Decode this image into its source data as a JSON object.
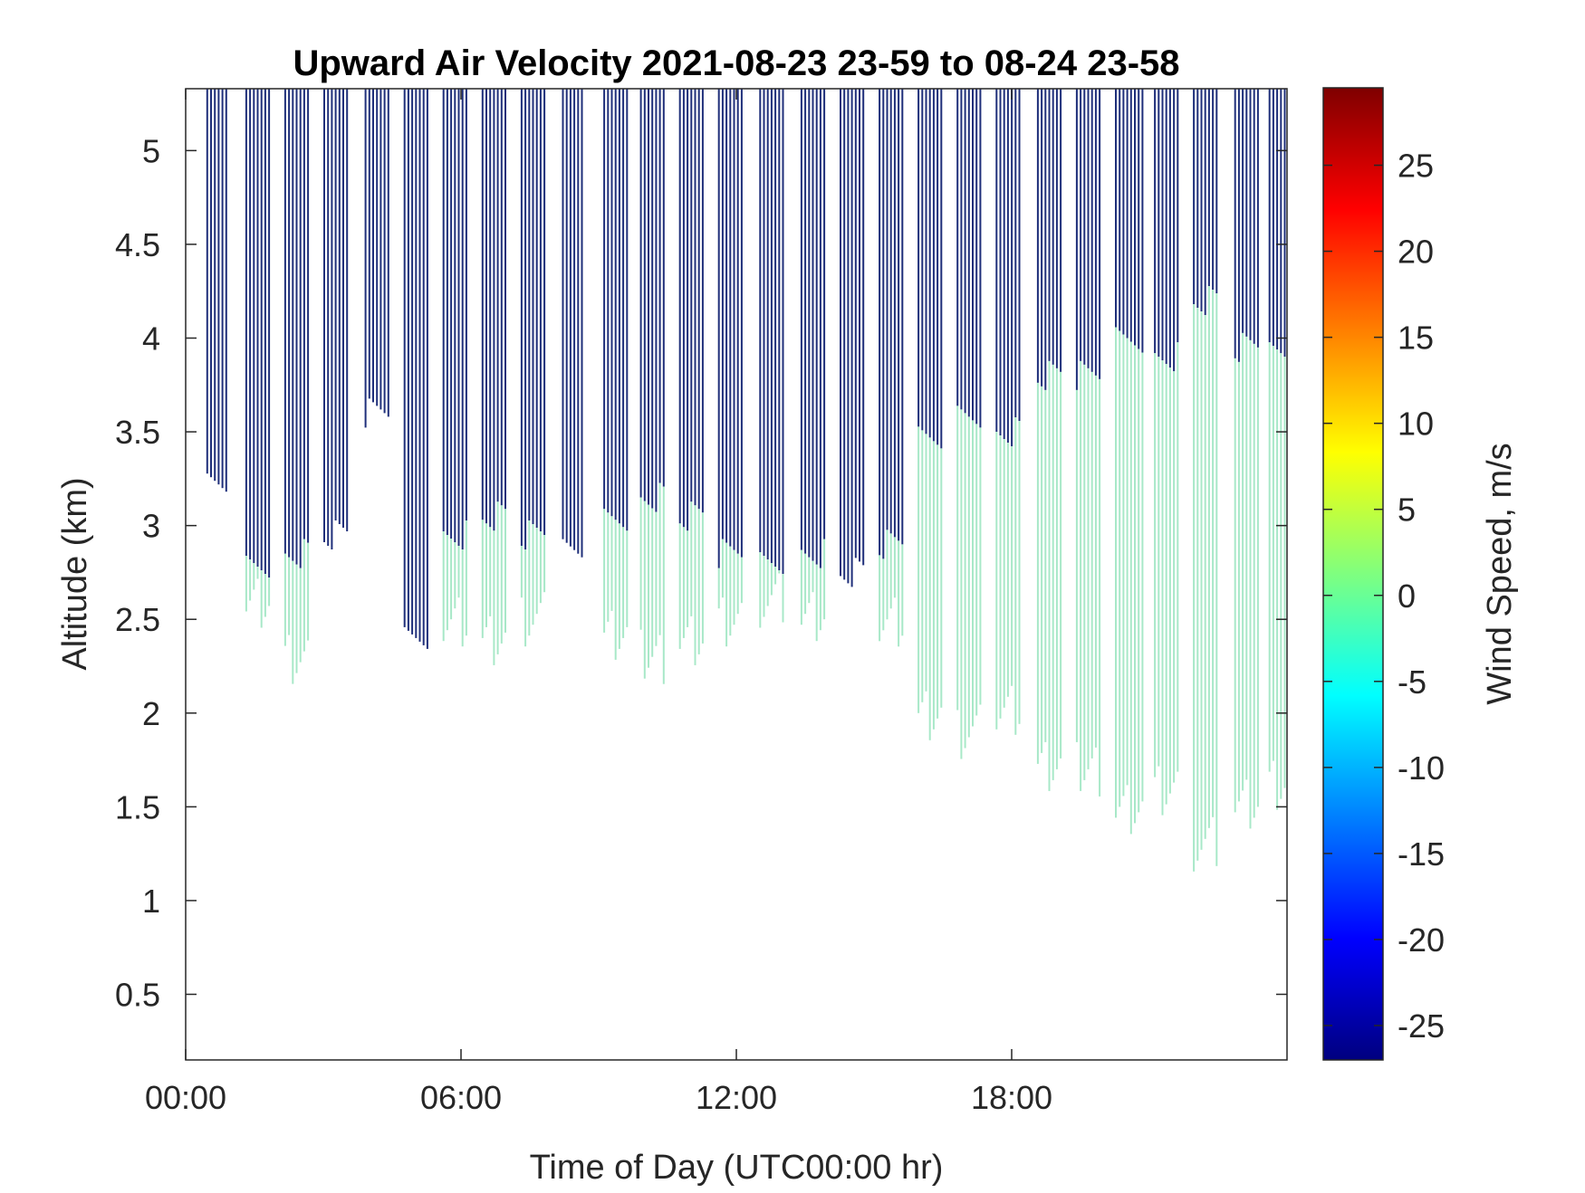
{
  "chart_data": {
    "type": "heatmap",
    "title": "Upward Air Velocity 2021-08-23 23-59 to 08-24 23-58",
    "xlabel": "Time of Day (UTC00:00 hr)",
    "ylabel": "Altitude (km)",
    "x_ticks": [
      {
        "value": 0,
        "label": "00:00"
      },
      {
        "value": 6,
        "label": "06:00"
      },
      {
        "value": 12,
        "label": "12:00"
      },
      {
        "value": 18,
        "label": "18:00"
      }
    ],
    "y_ticks": [
      {
        "value": 0.5,
        "label": "0.5"
      },
      {
        "value": 1,
        "label": "1"
      },
      {
        "value": 1.5,
        "label": "1.5"
      },
      {
        "value": 2,
        "label": "2"
      },
      {
        "value": 2.5,
        "label": "2.5"
      },
      {
        "value": 3,
        "label": "3"
      },
      {
        "value": 3.5,
        "label": "3.5"
      },
      {
        "value": 4,
        "label": "4"
      },
      {
        "value": 4.5,
        "label": "4.5"
      },
      {
        "value": 5,
        "label": "5"
      }
    ],
    "xlim": [
      0,
      24
    ],
    "ylim": [
      0.15,
      5.33
    ],
    "colorbar": {
      "label": "Wind Speed, m/s",
      "range": [
        -27,
        29.5
      ],
      "colormap": "jet",
      "ticks": [
        {
          "value": -25,
          "label": "-25"
        },
        {
          "value": -20,
          "label": "-20"
        },
        {
          "value": -15,
          "label": "-15"
        },
        {
          "value": -10,
          "label": "-10"
        },
        {
          "value": -5,
          "label": "-5"
        },
        {
          "value": 0,
          "label": "0"
        },
        {
          "value": 5,
          "label": "5"
        },
        {
          "value": 10,
          "label": "10"
        },
        {
          "value": 15,
          "label": "15"
        },
        {
          "value": 20,
          "label": "20"
        },
        {
          "value": 25,
          "label": "25"
        }
      ]
    },
    "colors": {
      "high_altitude_band": "#1f2f7a",
      "low_altitude_band": "#a8e8c8"
    },
    "series": [
      {
        "start": 0.45,
        "end": 0.9,
        "top": 5.33,
        "dark_bottom": 3.2,
        "green_bottom": null
      },
      {
        "start": 1.3,
        "end": 1.85,
        "top": 5.33,
        "dark_bottom": 2.8,
        "green_bottom": 2.6
      },
      {
        "start": 2.15,
        "end": 2.65,
        "top": 5.33,
        "dark_bottom": 2.85,
        "green_bottom": 2.3
      },
      {
        "start": 3.0,
        "end": 3.55,
        "top": 5.33,
        "dark_bottom": 2.95,
        "green_bottom": null
      },
      {
        "start": 3.9,
        "end": 4.4,
        "top": 5.33,
        "dark_bottom": 3.6,
        "green_bottom": null
      },
      {
        "start": 4.75,
        "end": 5.3,
        "top": 5.33,
        "dark_bottom": 2.4,
        "green_bottom": 2.85
      },
      {
        "start": 5.6,
        "end": 6.15,
        "top": 5.33,
        "dark_bottom": 2.95,
        "green_bottom": 2.5
      },
      {
        "start": 6.45,
        "end": 7.0,
        "top": 5.33,
        "dark_bottom": 3.05,
        "green_bottom": 2.4
      },
      {
        "start": 7.3,
        "end": 7.85,
        "top": 5.33,
        "dark_bottom": 2.95,
        "green_bottom": 2.5
      },
      {
        "start": 8.2,
        "end": 8.65,
        "top": 5.33,
        "dark_bottom": 2.85,
        "green_bottom": null
      },
      {
        "start": 9.1,
        "end": 9.6,
        "top": 5.33,
        "dark_bottom": 3.05,
        "green_bottom": 2.4
      },
      {
        "start": 9.9,
        "end": 10.45,
        "top": 5.33,
        "dark_bottom": 3.15,
        "green_bottom": 2.3
      },
      {
        "start": 10.75,
        "end": 11.3,
        "top": 5.33,
        "dark_bottom": 3.05,
        "green_bottom": 2.4
      },
      {
        "start": 11.6,
        "end": 12.1,
        "top": 5.33,
        "dark_bottom": 2.85,
        "green_bottom": 2.5
      },
      {
        "start": 12.5,
        "end": 13.0,
        "top": 5.33,
        "dark_bottom": 2.8,
        "green_bottom": 2.6
      },
      {
        "start": 13.4,
        "end": 13.95,
        "top": 5.33,
        "dark_bottom": 2.85,
        "green_bottom": 2.5
      },
      {
        "start": 14.25,
        "end": 14.8,
        "top": 5.33,
        "dark_bottom": 2.75,
        "green_bottom": null
      },
      {
        "start": 15.1,
        "end": 15.6,
        "top": 5.33,
        "dark_bottom": 2.9,
        "green_bottom": 2.5
      },
      {
        "start": 15.95,
        "end": 16.45,
        "top": 5.33,
        "dark_bottom": 3.45,
        "green_bottom": 2.0
      },
      {
        "start": 16.8,
        "end": 17.35,
        "top": 5.33,
        "dark_bottom": 3.6,
        "green_bottom": 1.9
      },
      {
        "start": 17.65,
        "end": 18.2,
        "top": 5.33,
        "dark_bottom": 3.5,
        "green_bottom": 2.0
      },
      {
        "start": 18.55,
        "end": 19.1,
        "top": 5.33,
        "dark_bottom": 3.8,
        "green_bottom": 1.7
      },
      {
        "start": 19.4,
        "end": 19.95,
        "top": 5.33,
        "dark_bottom": 3.8,
        "green_bottom": 1.7
      },
      {
        "start": 20.25,
        "end": 20.85,
        "top": 5.33,
        "dark_bottom": 4.0,
        "green_bottom": 1.5
      },
      {
        "start": 21.1,
        "end": 21.65,
        "top": 5.33,
        "dark_bottom": 3.9,
        "green_bottom": 1.6
      },
      {
        "start": 21.95,
        "end": 22.5,
        "top": 5.33,
        "dark_bottom": 4.2,
        "green_bottom": 1.3
      },
      {
        "start": 22.85,
        "end": 23.4,
        "top": 5.33,
        "dark_bottom": 3.95,
        "green_bottom": 1.5
      },
      {
        "start": 23.6,
        "end": 24.0,
        "top": 5.33,
        "dark_bottom": 3.9,
        "green_bottom": 1.6
      }
    ]
  }
}
